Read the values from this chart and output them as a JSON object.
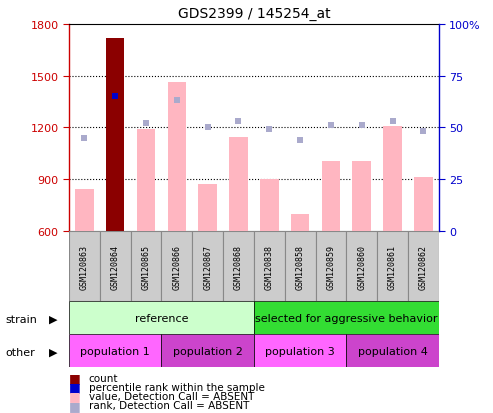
{
  "title": "GDS2399 / 145254_at",
  "samples": [
    "GSM120863",
    "GSM120864",
    "GSM120865",
    "GSM120866",
    "GSM120867",
    "GSM120868",
    "GSM120838",
    "GSM120858",
    "GSM120859",
    "GSM120860",
    "GSM120861",
    "GSM120862"
  ],
  "bar_values": [
    840,
    1720,
    1190,
    1460,
    870,
    1145,
    900,
    695,
    1005,
    1005,
    1210,
    910
  ],
  "bar_is_dark": [
    false,
    true,
    false,
    false,
    false,
    false,
    false,
    false,
    false,
    false,
    false,
    false
  ],
  "rank_values": [
    45,
    65,
    52,
    63,
    50,
    53,
    49,
    44,
    51,
    51,
    53,
    48
  ],
  "rank_is_dark": [
    false,
    true,
    false,
    false,
    false,
    false,
    false,
    false,
    false,
    false,
    false,
    false
  ],
  "ylim_left": [
    600,
    1800
  ],
  "ylim_right": [
    0,
    100
  ],
  "yticks_left": [
    600,
    900,
    1200,
    1500,
    1800
  ],
  "yticks_right": [
    0,
    25,
    50,
    75,
    100
  ],
  "bar_color_absent": "#FFB6C1",
  "bar_color_present": "#8B0000",
  "rank_color_absent": "#AAAACC",
  "rank_color_present": "#0000CC",
  "strain_groups": [
    {
      "label": "reference",
      "start": 0,
      "end": 6,
      "color": "#CCFFCC"
    },
    {
      "label": "selected for aggressive behavior",
      "start": 6,
      "end": 12,
      "color": "#33DD33"
    }
  ],
  "other_groups": [
    {
      "label": "population 1",
      "start": 0,
      "end": 3,
      "color": "#FF66FF"
    },
    {
      "label": "population 2",
      "start": 3,
      "end": 6,
      "color": "#CC44CC"
    },
    {
      "label": "population 3",
      "start": 6,
      "end": 9,
      "color": "#FF66FF"
    },
    {
      "label": "population 4",
      "start": 9,
      "end": 12,
      "color": "#CC44CC"
    }
  ],
  "legend_items": [
    {
      "label": "count",
      "color": "#8B0000"
    },
    {
      "label": "percentile rank within the sample",
      "color": "#0000CC"
    },
    {
      "label": "value, Detection Call = ABSENT",
      "color": "#FFB6C1"
    },
    {
      "label": "rank, Detection Call = ABSENT",
      "color": "#AAAACC"
    }
  ],
  "left_axis_color": "#CC0000",
  "right_axis_color": "#0000CC",
  "sample_box_color": "#CCCCCC",
  "sample_box_edge": "#888888"
}
